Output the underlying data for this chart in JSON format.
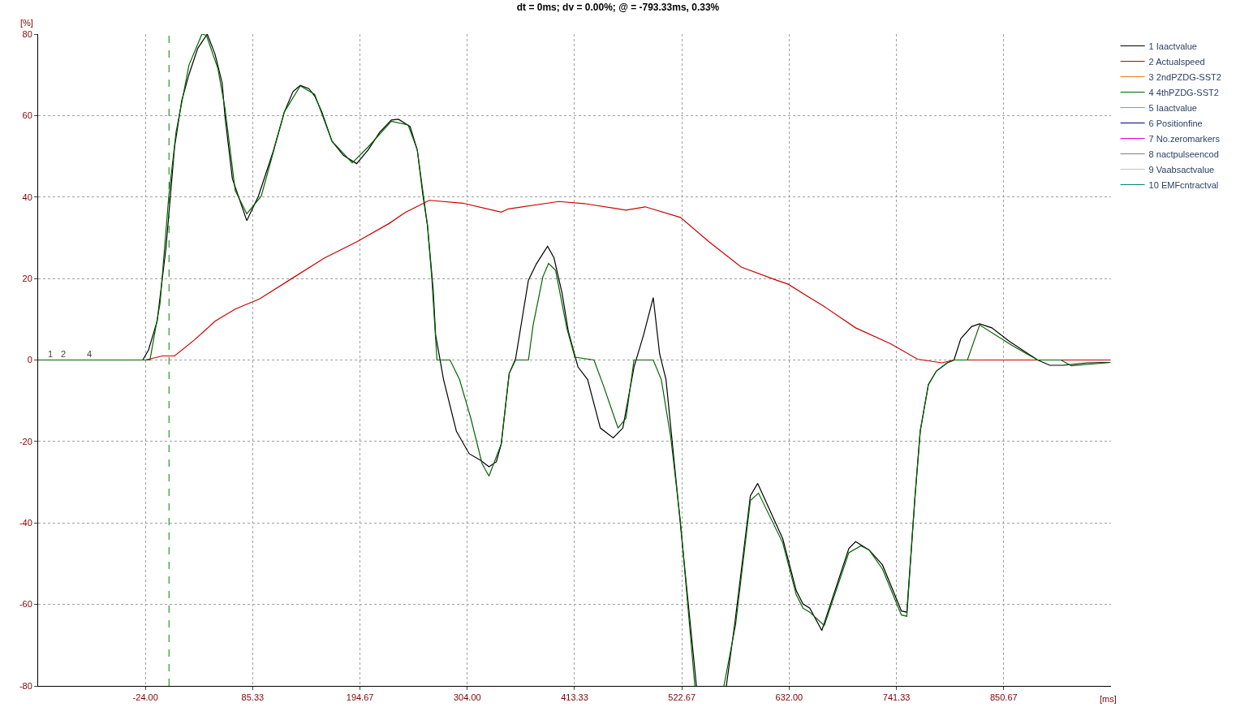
{
  "chart_data": {
    "type": "line",
    "title": "dt = 0ms; dv = 0.00%; @ = -793.33ms, 0.33%",
    "xlabel": "[ms]",
    "ylabel": "[%]",
    "xlim": [
      -133.33,
      960
    ],
    "ylim": [
      -80,
      80
    ],
    "xticks": [
      {
        "value": -24,
        "label": "-24.00"
      },
      {
        "value": 85.33,
        "label": "85.33"
      },
      {
        "value": 194.67,
        "label": "194.67"
      },
      {
        "value": 304,
        "label": "304.00"
      },
      {
        "value": 413.33,
        "label": "413.33"
      },
      {
        "value": 522.67,
        "label": "522.67"
      },
      {
        "value": 632,
        "label": "632.00"
      },
      {
        "value": 741.33,
        "label": "741.33"
      },
      {
        "value": 850.67,
        "label": "850.67"
      }
    ],
    "yticks": [
      -80,
      -60,
      -40,
      -20,
      0,
      20,
      40,
      60,
      80
    ],
    "grid": true,
    "legend": "top right",
    "marker": "none",
    "line_style": "solid",
    "ref_lines": [
      {
        "axis": "x",
        "value": 0,
        "color": "#008000",
        "line_style": "dashed"
      }
    ],
    "annotations": [
      {
        "text": "1",
        "x": -121.3,
        "y": 0
      },
      {
        "text": "2",
        "x": -107.3,
        "y": 0
      },
      {
        "text": "4",
        "x": -80.9,
        "y": 0
      }
    ],
    "series": [
      {
        "name": "1 Iaactvalue",
        "color": "#000000",
        "x": [
          -133.33,
          -26.7,
          -20.8,
          -12.0,
          -3.1,
          5.7,
          13.0,
          20.4,
          29.3,
          39.0,
          46.9,
          54.2,
          57.2,
          64.6,
          79.3,
          91.1,
          105.8,
          117.6,
          126.4,
          133.8,
          142.6,
          148.5,
          155.8,
          166.1,
          177.9,
          191.2,
          203.0,
          214.8,
          226.6,
          233.9,
          245.7,
          253.0,
          258.9,
          263.4,
          269.2,
          271.7,
          279.8,
          292.9,
          305.9,
          317.4,
          326.1,
          333.6,
          338.6,
          346.7,
          353.2,
          366.3,
          374.4,
          385.8,
          392.3,
          400.5,
          407.0,
          416.8,
          426.6,
          439.6,
          452.7,
          462.5,
          473.9,
          483.7,
          493.5,
          500.0,
          506.5,
          514.7,
          527.7,
          537.5,
          552,
          568.0,
          577.4,
          592.5,
          599.9,
          625.5,
          639.2,
          646.1,
          653.0,
          665.3,
          692.8,
          699.7,
          713.4,
          727.1,
          746.4,
          751.9,
          760.1,
          765.6,
          773.9,
          782.1,
          793.1,
          800.0,
          806.9,
          817.9,
          826.1,
          838.5,
          856.4,
          885.2,
          897.6,
          911.3,
          936.0,
          959.4
        ],
        "values": [
          0,
          0,
          2.5,
          9.6,
          27.4,
          52.3,
          63.7,
          70.1,
          76.5,
          80,
          75.1,
          68.0,
          59.5,
          44.5,
          34.2,
          40.2,
          50.9,
          60.9,
          65.9,
          67.4,
          66.6,
          64.8,
          60.9,
          53.7,
          50.2,
          48.2,
          51.6,
          55.9,
          58.9,
          59.1,
          57.3,
          51.6,
          40.2,
          33.1,
          17.4,
          6.2,
          -4.8,
          -17.5,
          -23.0,
          -24.6,
          -26.2,
          -25.0,
          -20.6,
          -3.3,
          0.3,
          19.6,
          23.6,
          27.9,
          25.1,
          16.5,
          7.0,
          -1.7,
          -4.8,
          -16.7,
          -19.1,
          -16.7,
          -1.7,
          6.2,
          15.3,
          1.5,
          -4.8,
          -24.6,
          -56.2,
          -80,
          null,
          -80,
          -63.2,
          -33.3,
          -30.3,
          -43.9,
          -56.6,
          -59.9,
          -60.9,
          -66.4,
          -46.3,
          -44.6,
          -46.6,
          -50.3,
          -61.6,
          -61.9,
          -34.0,
          -17.4,
          -6.0,
          -2.7,
          -0.7,
          0,
          5.2,
          8.2,
          8.9,
          7.9,
          4.6,
          0,
          -1.3,
          -1.3,
          -0.7,
          -0.6
        ]
      },
      {
        "name": "2 Actualspeed",
        "color": "#cc0000",
        "x": [
          -133.33,
          -24,
          -6.7,
          5.7,
          26.3,
          46.9,
          67.5,
          92.3,
          125.2,
          158.2,
          191.2,
          224.2,
          240.7,
          265.2,
          299.4,
          338.6,
          346,
          397.3,
          423.3,
          465.7,
          485.3,
          521.2,
          550.5,
          583.1,
          619.0,
          631.0,
          653.0,
          666.7,
          699.7,
          735.4,
          762.8,
          787.5,
          800,
          959.4
        ],
        "values": [
          0,
          0,
          1,
          1,
          5,
          9.5,
          12.5,
          15,
          20,
          25,
          29,
          33.5,
          36.2,
          39.2,
          38.5,
          36.3,
          37.1,
          38.9,
          38.4,
          36.8,
          37.6,
          35.0,
          29.0,
          22.8,
          19.6,
          18.6,
          15.3,
          13.3,
          7.9,
          4.0,
          0.2,
          -0.7,
          0,
          0
        ]
      },
      {
        "name": "3 2ndPZDG-SST2",
        "color": "#e08020"
      },
      {
        "name": "4 4thPZDG-SST2",
        "color": "#006400",
        "x": [
          -133.33,
          -19.4,
          -9.1,
          -0.2,
          7.2,
          20.4,
          33.6,
          38.1,
          49.9,
          57.2,
          67.5,
          79.3,
          94.0,
          117.6,
          133.8,
          148.5,
          166.1,
          186.8,
          203.0,
          226.6,
          243.7,
          253.0,
          263.4,
          267.8,
          273.1,
          286.4,
          296.1,
          307.6,
          319.0,
          326.1,
          338.6,
          346.7,
          353.2,
          366.3,
          371.1,
          381.0,
          386.8,
          394.0,
          405.4,
          413.6,
          433.1,
          442.9,
          457.6,
          465.7,
          473.9,
          482.0,
          493.5,
          501.7,
          511.4,
          521.2,
          535.9,
          550,
          565.5,
          577.4,
          592.5,
          600.8,
          625.5,
          639.2,
          646.1,
          653.0,
          667.8,
          692.8,
          705.1,
          713.4,
          727.1,
          746.4,
          751.9,
          760.1,
          765.6,
          773.9,
          782.1,
          793.1,
          800.0,
          813.7,
          826.1,
          859.1,
          885.2,
          909.0,
          919.5,
          959.4
        ],
        "values": [
          0,
          0,
          13.9,
          40.2,
          55.9,
          72.4,
          80,
          79.7,
          71.5,
          61.6,
          41.6,
          35.9,
          40.2,
          60.9,
          67.3,
          65.2,
          53.7,
          48.4,
          52.3,
          58.6,
          57.7,
          51.6,
          33.1,
          20.2,
          0,
          0,
          -4.8,
          -14.3,
          -25.4,
          -28.5,
          -20.6,
          -3.3,
          0,
          0,
          8.6,
          20.4,
          23.7,
          22.0,
          7.8,
          0.7,
          0,
          -6.4,
          -16.7,
          -14.3,
          0,
          0,
          0,
          -4.8,
          -19.1,
          -39.6,
          -80,
          null,
          -80,
          -65,
          -34.5,
          -32.7,
          -44.9,
          -57.6,
          -60.9,
          -61.9,
          -65.2,
          -47.3,
          -45.6,
          -46.6,
          -51.3,
          -62.6,
          -62.9,
          -34.0,
          -17.4,
          -6.0,
          -2.7,
          -0.7,
          0,
          0,
          8.6,
          3.6,
          0,
          0,
          -1.4,
          -0.6
        ]
      },
      {
        "name": "5 Iaactvalue",
        "color": "#40d040"
      },
      {
        "name": "6 Positionfine",
        "color": "#000080"
      },
      {
        "name": "7 No.zeromarkers",
        "color": "#e000e0"
      },
      {
        "name": "8 nactpulseencod",
        "color": "#808080"
      },
      {
        "name": "9 Vaabsactvalue",
        "color": "#c0c0c0"
      },
      {
        "name": "10 EMFcntractval",
        "color": "#008080"
      }
    ]
  }
}
